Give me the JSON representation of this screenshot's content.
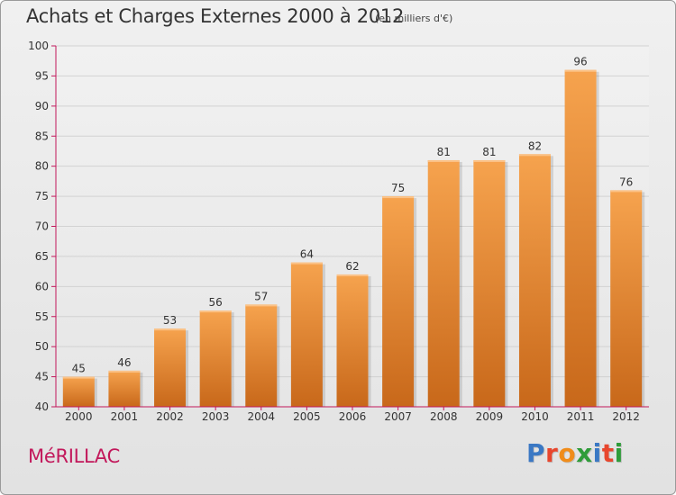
{
  "header": {
    "title": "Achats et Charges Externes 2000 à 2012",
    "unit": "(en milliers d'€)"
  },
  "footer": {
    "town": "MéRILLAC",
    "logo_text": "Proxiti",
    "logo_colors": [
      "#3a78c4",
      "#e8462d",
      "#f08c1a",
      "#2f9c3a",
      "#3a78c4",
      "#e8462d",
      "#2f9c3a"
    ]
  },
  "chart_data": {
    "type": "bar",
    "categories": [
      "2000",
      "2001",
      "2002",
      "2003",
      "2004",
      "2005",
      "2006",
      "2007",
      "2008",
      "2009",
      "2010",
      "2011",
      "2012"
    ],
    "values": [
      45,
      46,
      53,
      56,
      57,
      64,
      62,
      75,
      81,
      81,
      82,
      96,
      76
    ],
    "ylim": [
      40,
      100
    ],
    "yticks": [
      40,
      45,
      50,
      55,
      60,
      65,
      70,
      75,
      80,
      85,
      90,
      95,
      100
    ],
    "grid": true,
    "bar_color": "#f0902e",
    "bar_color_light": "#f6a34e",
    "bar_color_dark": "#c8681a",
    "axis_color": "#c2185b"
  }
}
